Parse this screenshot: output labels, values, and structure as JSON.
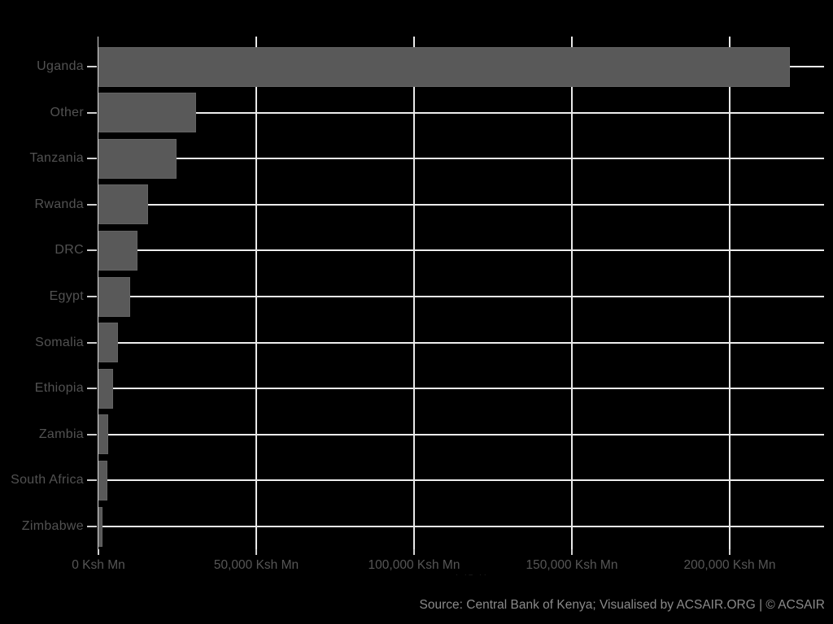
{
  "chart_data": {
    "type": "bar",
    "orientation": "horizontal",
    "title": "",
    "xlabel": "",
    "ylabel": "",
    "x_axis_title_fragment": "· ·– ··",
    "xlim": [
      0,
      230000
    ],
    "grid": "white major gridlines on black background; vertical lines every 50,000; one horizontal line per category",
    "legend_position": "none",
    "categories": [
      "Uganda",
      "Other",
      "Tanzania",
      "Rwanda",
      "DRC",
      "Egypt",
      "Somalia",
      "Ethiopia",
      "Zambia",
      "South Africa",
      "Zimbabwe"
    ],
    "values": [
      219000,
      31000,
      24700,
      15700,
      12400,
      10000,
      6200,
      4600,
      3100,
      2800,
      1300
    ],
    "value_unit": "Ksh Mn",
    "x_ticks": [
      {
        "label": "0 Ksh Mn",
        "value": 0
      },
      {
        "label": "50,000 Ksh Mn",
        "value": 50000
      },
      {
        "label": "100,000 Ksh Mn",
        "value": 100000
      },
      {
        "label": "150,000 Ksh Mn",
        "value": 150000
      },
      {
        "label": "200,000 Ksh Mn",
        "value": 200000
      }
    ]
  },
  "caption": {
    "text": "Source: Central Bank of Kenya; Visualised by ACSAIR.ORG | © ACSAIR"
  },
  "colors": {
    "background": "#000000",
    "bar_fill": "#595959",
    "gridline": "#ededed",
    "axis_text": "#525252",
    "tick_mark": "#d0d0d0",
    "caption_text": "#8a8a8a"
  }
}
